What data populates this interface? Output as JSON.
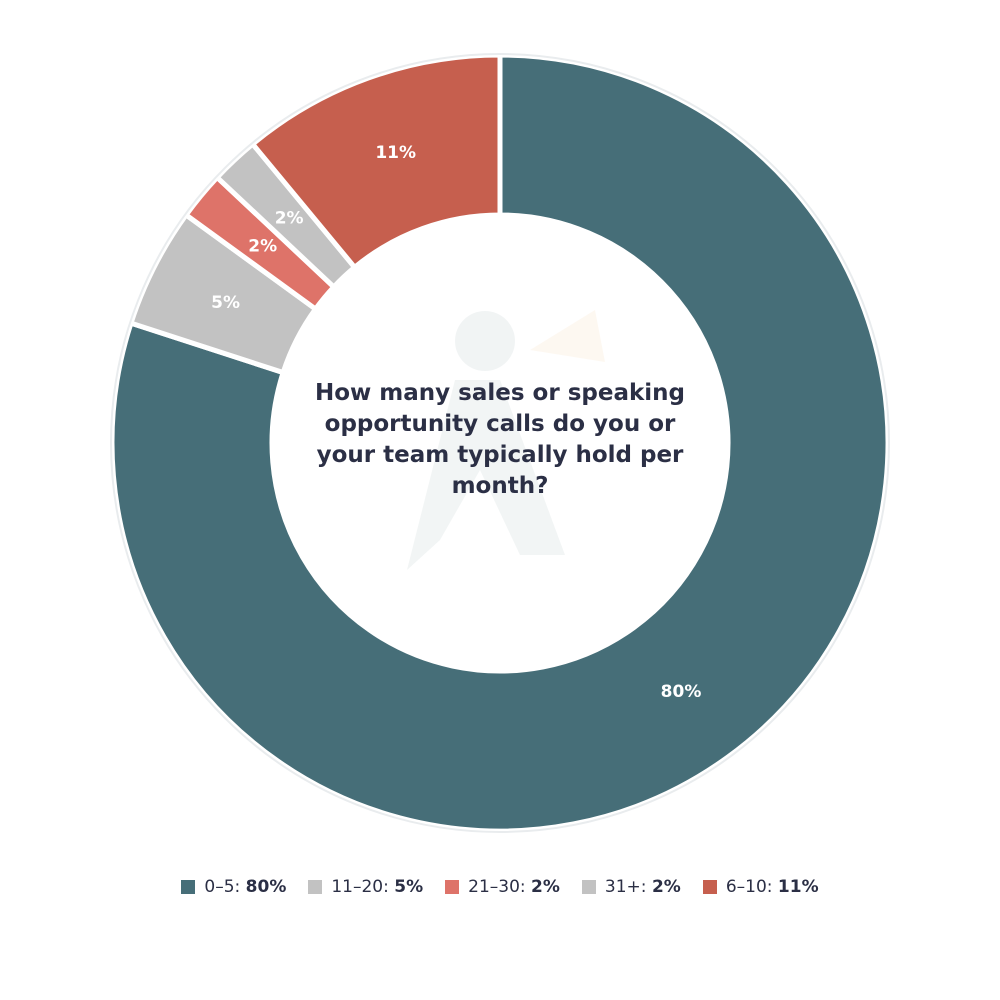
{
  "chart_data": {
    "type": "pie",
    "variant": "donut",
    "title": "How many sales or speaking opportunity calls do you or your team typically hold per month?",
    "slices": [
      {
        "label": "0–5",
        "value": 80,
        "display": "80%",
        "color": "#466e78"
      },
      {
        "label": "11–20",
        "value": 5,
        "display": "5%",
        "color": "#c2c2c2"
      },
      {
        "label": "21–30",
        "value": 2,
        "display": "2%",
        "color": "#de7369"
      },
      {
        "label": "31+",
        "value": 2,
        "display": "2%",
        "color": "#c2c2c2"
      },
      {
        "label": "6–10",
        "value": 11,
        "display": "11%",
        "color": "#c65f4e"
      }
    ],
    "legend_position": "bottom"
  },
  "legend": [
    {
      "label": "0–5:",
      "value": "80%",
      "color": "#466e78"
    },
    {
      "label": "11–20:",
      "value": "5%",
      "color": "#c2c2c2"
    },
    {
      "label": "21–30:",
      "value": "2%",
      "color": "#de7369"
    },
    {
      "label": "31+:",
      "value": "2%",
      "color": "#c2c2c2"
    },
    {
      "label": "6–10:",
      "value": "11%",
      "color": "#c65f4e"
    }
  ]
}
